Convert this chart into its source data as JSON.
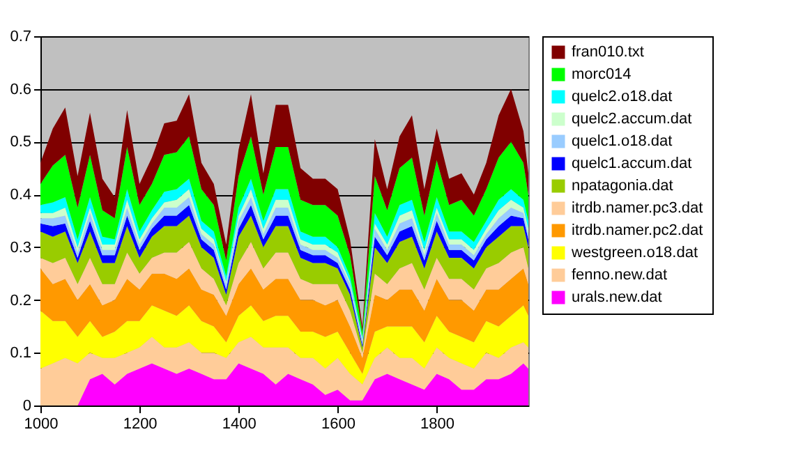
{
  "chart_data": {
    "type": "area",
    "stacked": true,
    "grid": "y",
    "legend": "right",
    "x": [
      1000,
      1025,
      1050,
      1075,
      1100,
      1125,
      1150,
      1175,
      1200,
      1225,
      1250,
      1275,
      1300,
      1325,
      1350,
      1375,
      1400,
      1425,
      1450,
      1475,
      1500,
      1525,
      1550,
      1575,
      1600,
      1625,
      1650,
      1675,
      1700,
      1725,
      1750,
      1775,
      1800,
      1825,
      1850,
      1875,
      1900,
      1925,
      1950,
      1975,
      1985
    ],
    "xlim": [
      1000,
      1985
    ],
    "xticks": [
      1000,
      1200,
      1400,
      1600,
      1800
    ],
    "ylim": [
      0,
      0.7
    ],
    "yticks": [
      0,
      0.1,
      0.2,
      0.3,
      0.4,
      0.5,
      0.6,
      0.7
    ],
    "series": [
      {
        "name": "urals.new.dat",
        "color": "#ff00ff",
        "values": [
          0,
          0,
          0,
          0,
          0.05,
          0.06,
          0.04,
          0.06,
          0.07,
          0.08,
          0.07,
          0.06,
          0.07,
          0.06,
          0.05,
          0.05,
          0.08,
          0.07,
          0.06,
          0.04,
          0.06,
          0.05,
          0.04,
          0.02,
          0.03,
          0.01,
          0.01,
          0.05,
          0.06,
          0.05,
          0.04,
          0.03,
          0.06,
          0.05,
          0.03,
          0.03,
          0.05,
          0.05,
          0.06,
          0.08,
          0.07
        ]
      },
      {
        "name": "fenno.new.dat",
        "color": "#ffcc99",
        "values": [
          0.07,
          0.08,
          0.09,
          0.08,
          0.05,
          0.03,
          0.05,
          0.04,
          0.04,
          0.05,
          0.04,
          0.05,
          0.05,
          0.04,
          0.05,
          0.04,
          0.04,
          0.06,
          0.05,
          0.07,
          0.05,
          0.04,
          0.05,
          0.05,
          0.06,
          0.05,
          0.03,
          0.04,
          0.05,
          0.04,
          0.05,
          0.04,
          0.05,
          0.04,
          0.05,
          0.04,
          0.05,
          0.04,
          0.05,
          0.04,
          0.04
        ]
      },
      {
        "name": "westgreen.o18.dat",
        "color": "#ffff00",
        "values": [
          0.11,
          0.08,
          0.07,
          0.05,
          0.06,
          0.04,
          0.05,
          0.06,
          0.05,
          0.06,
          0.07,
          0.06,
          0.07,
          0.06,
          0.05,
          0.03,
          0.05,
          0.06,
          0.05,
          0.06,
          0.06,
          0.05,
          0.05,
          0.06,
          0.05,
          0.04,
          0.02,
          0.05,
          0.04,
          0.06,
          0.06,
          0.05,
          0.06,
          0.05,
          0.05,
          0.05,
          0.06,
          0.06,
          0.06,
          0.07,
          0.06
        ]
      },
      {
        "name": "itrdb.namer.pc2.dat",
        "color": "#ff9900",
        "values": [
          0.08,
          0.07,
          0.08,
          0.07,
          0.07,
          0.06,
          0.06,
          0.08,
          0.06,
          0.06,
          0.07,
          0.07,
          0.07,
          0.06,
          0.06,
          0.05,
          0.06,
          0.07,
          0.06,
          0.07,
          0.07,
          0.06,
          0.06,
          0.06,
          0.06,
          0.05,
          0.03,
          0.07,
          0.05,
          0.07,
          0.07,
          0.06,
          0.07,
          0.06,
          0.07,
          0.06,
          0.06,
          0.07,
          0.07,
          0.07,
          0.06
        ]
      },
      {
        "name": "itrdb.namer.pc3.dat",
        "color": "#ffcc99",
        "values": [
          0.02,
          0.04,
          0.04,
          0.03,
          0.05,
          0.04,
          0.03,
          0.05,
          0.03,
          0.03,
          0.04,
          0.05,
          0.05,
          0.04,
          0.03,
          0.02,
          0.04,
          0.05,
          0.04,
          0.05,
          0.05,
          0.04,
          0.03,
          0.04,
          0.03,
          0.03,
          0.01,
          0.04,
          0.03,
          0.04,
          0.05,
          0.04,
          0.04,
          0.04,
          0.04,
          0.04,
          0.04,
          0.05,
          0.05,
          0.04,
          0.03
        ]
      },
      {
        "name": "npatagonia.dat",
        "color": "#99cc00",
        "values": [
          0.05,
          0.05,
          0.05,
          0.04,
          0.05,
          0.04,
          0.04,
          0.05,
          0.03,
          0.04,
          0.05,
          0.05,
          0.05,
          0.04,
          0.04,
          0.02,
          0.05,
          0.05,
          0.04,
          0.05,
          0.05,
          0.04,
          0.04,
          0.04,
          0.03,
          0.03,
          0.01,
          0.05,
          0.04,
          0.05,
          0.05,
          0.04,
          0.05,
          0.04,
          0.04,
          0.04,
          0.04,
          0.05,
          0.05,
          0.04,
          0.04
        ]
      },
      {
        "name": "quelc1.accum.dat",
        "color": "#0000ff",
        "values": [
          0.015,
          0.02,
          0.015,
          0.01,
          0.02,
          0.015,
          0.015,
          0.02,
          0.015,
          0.015,
          0.02,
          0.02,
          0.02,
          0.015,
          0.015,
          0.01,
          0.015,
          0.02,
          0.015,
          0.02,
          0.02,
          0.015,
          0.015,
          0.015,
          0.01,
          0.01,
          0.005,
          0.02,
          0.015,
          0.02,
          0.02,
          0.015,
          0.02,
          0.015,
          0.015,
          0.015,
          0.015,
          0.02,
          0.02,
          0.015,
          0.015
        ]
      },
      {
        "name": "quelc1.o18.dat",
        "color": "#99ccff",
        "values": [
          0.01,
          0.015,
          0.015,
          0.01,
          0.015,
          0.01,
          0.01,
          0.015,
          0.01,
          0.01,
          0.015,
          0.015,
          0.015,
          0.01,
          0.01,
          0.01,
          0.015,
          0.015,
          0.01,
          0.015,
          0.015,
          0.01,
          0.01,
          0.01,
          0.01,
          0.01,
          0.005,
          0.015,
          0.01,
          0.015,
          0.015,
          0.01,
          0.015,
          0.01,
          0.01,
          0.01,
          0.01,
          0.015,
          0.015,
          0.01,
          0.01
        ]
      },
      {
        "name": "quelc2.accum.dat",
        "color": "#ccffcc",
        "values": [
          0.01,
          0.01,
          0.015,
          0.01,
          0.01,
          0.01,
          0.01,
          0.015,
          0.01,
          0.01,
          0.01,
          0.015,
          0.015,
          0.01,
          0.01,
          0.005,
          0.01,
          0.015,
          0.01,
          0.015,
          0.015,
          0.01,
          0.01,
          0.01,
          0.01,
          0.005,
          0.005,
          0.01,
          0.01,
          0.015,
          0.015,
          0.01,
          0.01,
          0.01,
          0.01,
          0.01,
          0.01,
          0.015,
          0.015,
          0.01,
          0.01
        ]
      },
      {
        "name": "quelc2.o18.dat",
        "color": "#00ffff",
        "values": [
          0.015,
          0.02,
          0.02,
          0.015,
          0.02,
          0.015,
          0.01,
          0.02,
          0.015,
          0.015,
          0.02,
          0.02,
          0.02,
          0.015,
          0.015,
          0.01,
          0.015,
          0.02,
          0.015,
          0.02,
          0.02,
          0.015,
          0.015,
          0.015,
          0.01,
          0.01,
          0.005,
          0.02,
          0.015,
          0.02,
          0.02,
          0.015,
          0.02,
          0.015,
          0.015,
          0.015,
          0.015,
          0.02,
          0.02,
          0.015,
          0.015
        ]
      },
      {
        "name": "morc014",
        "color": "#00ff00",
        "values": [
          0.04,
          0.07,
          0.08,
          0.06,
          0.08,
          0.05,
          0.04,
          0.08,
          0.05,
          0.05,
          0.07,
          0.07,
          0.08,
          0.06,
          0.05,
          0.03,
          0.06,
          0.08,
          0.05,
          0.08,
          0.08,
          0.06,
          0.06,
          0.06,
          0.06,
          0.04,
          0.01,
          0.07,
          0.05,
          0.07,
          0.08,
          0.05,
          0.07,
          0.05,
          0.06,
          0.05,
          0.06,
          0.08,
          0.09,
          0.07,
          0.05
        ]
      },
      {
        "name": "fran010.txt",
        "color": "#800000",
        "values": [
          0.04,
          0.07,
          0.09,
          0.06,
          0.08,
          0.06,
          0.04,
          0.07,
          0.04,
          0.05,
          0.06,
          0.06,
          0.08,
          0.05,
          0.04,
          0.03,
          0.05,
          0.08,
          0.04,
          0.08,
          0.08,
          0.06,
          0.05,
          0.05,
          0.05,
          0.03,
          0.01,
          0.07,
          0.04,
          0.06,
          0.08,
          0.05,
          0.06,
          0.05,
          0.05,
          0.04,
          0.05,
          0.08,
          0.1,
          0.06,
          0.04
        ]
      }
    ]
  }
}
